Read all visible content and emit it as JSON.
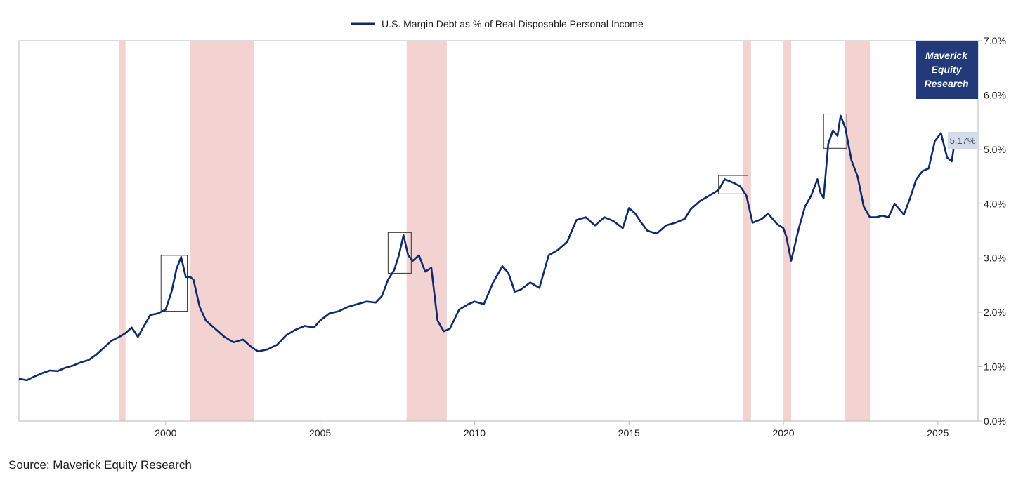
{
  "chart_data": {
    "type": "line",
    "title": "",
    "xlabel": "",
    "ylabel": "",
    "legend": [
      "U.S. Margin Debt as % of Real Disposable Personal Income"
    ],
    "xlim": [
      1995.25,
      2026.3
    ],
    "ylim": [
      0,
      7
    ],
    "x_ticks": [
      2000,
      2005,
      2010,
      2015,
      2020,
      2025
    ],
    "x_tick_labels": [
      "2000",
      "2005",
      "2010",
      "2015",
      "2020",
      "2025"
    ],
    "y_ticks": [
      0,
      1,
      2,
      3,
      4,
      5,
      6,
      7
    ],
    "y_tick_labels": [
      "0.0%",
      "1.0%",
      "2.0%",
      "3.0%",
      "4.0%",
      "5.0%",
      "6.0%",
      "7.0%"
    ],
    "series": [
      {
        "name": "U.S. Margin Debt as % of Real Disposable Personal Income",
        "color": "#0d2a6b",
        "x": [
          1995.25,
          1995.5,
          1995.75,
          1996.0,
          1996.25,
          1996.5,
          1996.75,
          1997.0,
          1997.25,
          1997.5,
          1997.75,
          1998.0,
          1998.25,
          1998.5,
          1998.7,
          1998.9,
          1999.1,
          1999.3,
          1999.5,
          1999.75,
          2000.0,
          2000.2,
          2000.35,
          2000.5,
          2000.65,
          2000.8,
          2000.9,
          2001.1,
          2001.3,
          2001.6,
          2001.9,
          2002.2,
          2002.5,
          2002.8,
          2003.0,
          2003.3,
          2003.6,
          2003.9,
          2004.2,
          2004.5,
          2004.8,
          2005.0,
          2005.3,
          2005.6,
          2005.9,
          2006.2,
          2006.5,
          2006.8,
          2007.0,
          2007.2,
          2007.4,
          2007.55,
          2007.7,
          2007.85,
          2008.0,
          2008.2,
          2008.4,
          2008.6,
          2008.8,
          2009.0,
          2009.2,
          2009.5,
          2009.8,
          2010.0,
          2010.3,
          2010.6,
          2010.9,
          2011.1,
          2011.3,
          2011.5,
          2011.8,
          2012.1,
          2012.4,
          2012.7,
          2013.0,
          2013.3,
          2013.6,
          2013.9,
          2014.2,
          2014.5,
          2014.8,
          2015.0,
          2015.2,
          2015.4,
          2015.6,
          2015.9,
          2016.2,
          2016.5,
          2016.8,
          2017.0,
          2017.3,
          2017.6,
          2017.9,
          2018.1,
          2018.4,
          2018.6,
          2018.8,
          2019.0,
          2019.3,
          2019.5,
          2019.8,
          2020.0,
          2020.1,
          2020.25,
          2020.5,
          2020.7,
          2020.9,
          2021.1,
          2021.2,
          2021.3,
          2021.45,
          2021.6,
          2021.75,
          2021.85,
          2022.0,
          2022.2,
          2022.4,
          2022.6,
          2022.8,
          2023.0,
          2023.2,
          2023.4,
          2023.6,
          2023.9,
          2024.1,
          2024.3,
          2024.5,
          2024.7,
          2024.9,
          2025.1,
          2025.3,
          2025.45,
          2025.55
        ],
        "y": [
          0.78,
          0.75,
          0.82,
          0.88,
          0.93,
          0.92,
          0.98,
          1.02,
          1.08,
          1.12,
          1.22,
          1.35,
          1.48,
          1.55,
          1.62,
          1.72,
          1.55,
          1.75,
          1.95,
          1.98,
          2.05,
          2.4,
          2.8,
          3.02,
          2.65,
          2.65,
          2.6,
          2.1,
          1.85,
          1.7,
          1.55,
          1.45,
          1.5,
          1.35,
          1.28,
          1.32,
          1.4,
          1.58,
          1.68,
          1.75,
          1.72,
          1.85,
          1.98,
          2.02,
          2.1,
          2.15,
          2.2,
          2.18,
          2.3,
          2.6,
          2.78,
          3.05,
          3.42,
          3.05,
          2.95,
          3.05,
          2.75,
          2.82,
          1.85,
          1.65,
          1.7,
          2.05,
          2.15,
          2.2,
          2.15,
          2.55,
          2.85,
          2.72,
          2.38,
          2.42,
          2.55,
          2.45,
          3.05,
          3.15,
          3.3,
          3.7,
          3.75,
          3.6,
          3.75,
          3.68,
          3.55,
          3.92,
          3.82,
          3.65,
          3.5,
          3.45,
          3.6,
          3.65,
          3.72,
          3.9,
          4.05,
          4.15,
          4.25,
          4.45,
          4.38,
          4.32,
          4.15,
          3.65,
          3.72,
          3.82,
          3.62,
          3.55,
          3.38,
          2.95,
          3.55,
          3.95,
          4.15,
          4.45,
          4.2,
          4.1,
          5.1,
          5.35,
          5.25,
          5.62,
          5.4,
          4.8,
          4.5,
          3.95,
          3.75,
          3.75,
          3.78,
          3.75,
          4.0,
          3.8,
          4.1,
          4.45,
          4.6,
          4.65,
          5.15,
          5.3,
          4.85,
          4.78,
          5.17
        ]
      }
    ],
    "recession_bands": [
      [
        1998.5,
        1998.7
      ],
      [
        2000.8,
        2002.85
      ],
      [
        2007.8,
        2009.1
      ],
      [
        2018.7,
        2018.95
      ],
      [
        2020.0,
        2020.25
      ],
      [
        2022.0,
        2022.8
      ]
    ],
    "highlight_boxes": [
      {
        "x0": 1999.85,
        "x1": 2000.7,
        "y0": 2.02,
        "y1": 3.05
      },
      {
        "x0": 2007.2,
        "x1": 2007.95,
        "y0": 2.72,
        "y1": 3.47
      },
      {
        "x0": 2017.9,
        "x1": 2018.85,
        "y0": 4.18,
        "y1": 4.52
      },
      {
        "x0": 2021.3,
        "x1": 2022.05,
        "y0": 5.02,
        "y1": 5.65
      }
    ],
    "last_value_label": "5.17%",
    "colors": {
      "line": "#0d2a6b",
      "band": "#f2d3d2",
      "badge_bg": "#223a7a",
      "value_label_bg": "#d3dce8",
      "axis": "#b9b9b9",
      "box": "#333333"
    }
  },
  "badge": {
    "line1": "Maverick",
    "line2": "Equity",
    "line3": "Research"
  },
  "source": "Source: Maverick Equity Research"
}
